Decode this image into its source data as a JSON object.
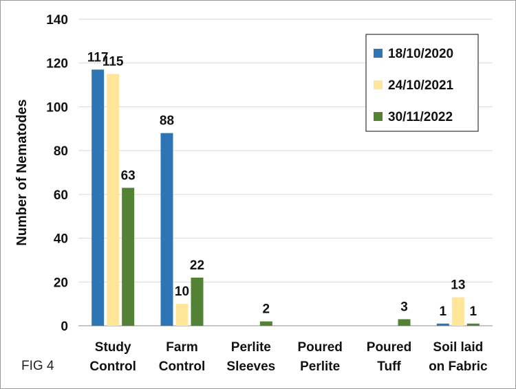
{
  "figure_label": "FIG 4",
  "chart_data": {
    "type": "bar",
    "ylabel": "Number of Nematodes",
    "xlabel": "",
    "ylim": [
      0,
      140
    ],
    "yticks": [
      0,
      20,
      40,
      60,
      80,
      100,
      120,
      140
    ],
    "grid": true,
    "legend_position": "top-right",
    "categories": [
      [
        "Study",
        "Control"
      ],
      [
        "Farm",
        "Control"
      ],
      [
        "Perlite",
        "Sleeves"
      ],
      [
        "Poured",
        "Perlite"
      ],
      [
        "Poured",
        "Tuff"
      ],
      [
        "Soil laid",
        "on Fabric"
      ]
    ],
    "series": [
      {
        "name": "18/10/2020",
        "color": "#2e75b6",
        "values": [
          117,
          88,
          0,
          0,
          0,
          1
        ],
        "labels": [
          "117",
          "88",
          "",
          "",
          "",
          "1"
        ]
      },
      {
        "name": "24/10/2021",
        "color": "#ffe699",
        "values": [
          115,
          10,
          0,
          0,
          0,
          13
        ],
        "labels": [
          "115",
          "10",
          "",
          "",
          "",
          "13"
        ]
      },
      {
        "name": "30/11/2022",
        "color": "#548235",
        "values": [
          63,
          22,
          2,
          0,
          3,
          1
        ],
        "labels": [
          "63",
          "22",
          "2",
          "",
          "3",
          "1"
        ]
      }
    ]
  }
}
